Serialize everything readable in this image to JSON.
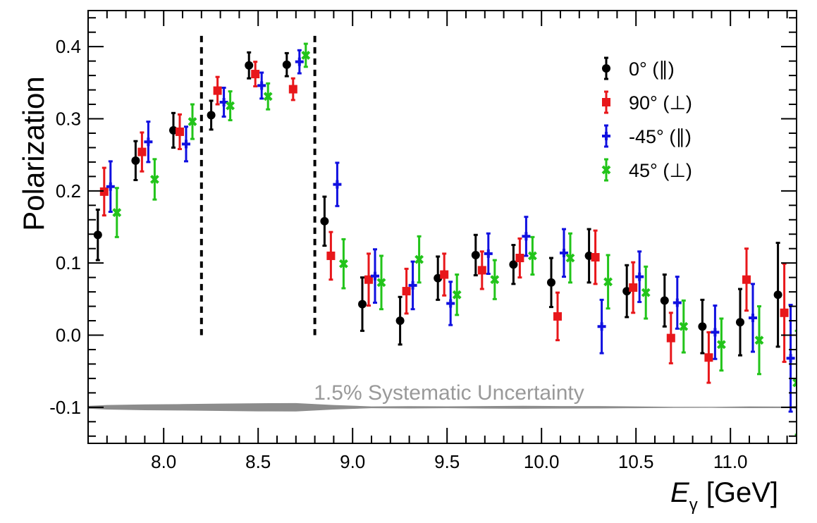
{
  "chart_data": {
    "type": "scatter",
    "xlabel": "E",
    "xlabel_sub": "γ",
    "xlabel_unit": "[GeV]",
    "ylabel": "Polarization",
    "xlim": [
      7.6,
      11.35
    ],
    "ylim": [
      -0.15,
      0.45
    ],
    "x_ticks": [
      "8.0",
      "8.5",
      "9.0",
      "9.5",
      "10.0",
      "10.5",
      "11.0"
    ],
    "y_ticks": [
      "-0.1",
      "0.0",
      "0.1",
      "0.2",
      "0.3",
      "0.4"
    ],
    "vertical_lines": [
      8.2,
      8.8
    ],
    "legend_position": "top-right",
    "systematic_band": {
      "label": "1.5% Systematic Uncertainty",
      "color": "#8c8c8c"
    },
    "series": [
      {
        "name": "0° (∥)",
        "color": "#000000",
        "marker": "circle",
        "x": [
          7.7,
          7.9,
          8.1,
          8.3,
          8.5,
          8.7,
          8.9,
          9.1,
          9.3,
          9.5,
          9.7,
          9.9,
          10.1,
          10.3,
          10.5,
          10.7,
          10.9,
          11.1,
          11.3
        ],
        "y": [
          0.139,
          0.242,
          0.284,
          0.305,
          0.374,
          0.375,
          0.158,
          0.043,
          0.02,
          0.079,
          0.111,
          0.098,
          0.073,
          0.11,
          0.061,
          0.048,
          0.012,
          0.018,
          0.056
        ],
        "err": [
          0.035,
          0.027,
          0.024,
          0.02,
          0.018,
          0.016,
          0.034,
          0.037,
          0.033,
          0.03,
          0.028,
          0.027,
          0.034,
          0.037,
          0.036,
          0.036,
          0.037,
          0.046,
          0.072
        ]
      },
      {
        "name": "90° (⊥)",
        "color": "#e8171b",
        "marker": "square",
        "x": [
          7.7,
          7.9,
          8.1,
          8.3,
          8.5,
          8.7,
          8.9,
          9.1,
          9.3,
          9.5,
          9.7,
          9.9,
          10.1,
          10.3,
          10.5,
          10.7,
          10.9,
          11.1,
          11.3
        ],
        "y": [
          0.199,
          0.254,
          0.282,
          0.339,
          0.362,
          0.341,
          0.11,
          0.077,
          0.061,
          0.084,
          0.09,
          0.107,
          0.026,
          0.108,
          0.066,
          -0.004,
          -0.031,
          0.077,
          0.031
        ],
        "err": [
          0.033,
          0.027,
          0.024,
          0.019,
          0.017,
          0.015,
          0.033,
          0.036,
          0.031,
          0.029,
          0.026,
          0.027,
          0.033,
          0.037,
          0.035,
          0.035,
          0.035,
          0.043,
          0.068
        ]
      },
      {
        "name": "-45° (∥)",
        "color": "#1010e0",
        "marker": "cross",
        "x": [
          7.7,
          7.9,
          8.1,
          8.3,
          8.5,
          8.7,
          8.9,
          9.1,
          9.3,
          9.5,
          9.7,
          9.9,
          10.1,
          10.3,
          10.5,
          10.7,
          10.9,
          11.1,
          11.3
        ],
        "y": [
          0.206,
          0.268,
          0.265,
          0.323,
          0.346,
          0.379,
          0.209,
          0.082,
          0.069,
          0.044,
          0.113,
          0.137,
          0.114,
          0.012,
          0.081,
          0.045,
          0.004,
          0.024,
          -0.032
        ],
        "err": [
          0.035,
          0.028,
          0.024,
          0.02,
          0.018,
          0.016,
          0.03,
          0.037,
          0.033,
          0.03,
          0.028,
          0.027,
          0.033,
          0.037,
          0.035,
          0.036,
          0.037,
          0.047,
          0.074
        ]
      },
      {
        "name": "45° (⊥)",
        "color": "#22c41a",
        "marker": "x",
        "x": [
          7.7,
          7.9,
          8.1,
          8.3,
          8.5,
          8.7,
          8.9,
          9.1,
          9.3,
          9.5,
          9.7,
          9.9,
          10.1,
          10.3,
          10.5,
          10.7,
          10.9,
          11.1,
          11.3
        ],
        "y": [
          0.17,
          0.216,
          0.296,
          0.318,
          0.331,
          0.388,
          0.099,
          0.073,
          0.105,
          0.056,
          0.077,
          0.11,
          0.107,
          0.074,
          0.059,
          0.012,
          -0.013,
          -0.007,
          -0.066
        ],
        "err": [
          0.034,
          0.028,
          0.024,
          0.02,
          0.018,
          0.016,
          0.034,
          0.037,
          0.032,
          0.028,
          0.027,
          0.026,
          0.034,
          0.037,
          0.036,
          0.036,
          0.036,
          0.047,
          0.072
        ]
      }
    ]
  }
}
